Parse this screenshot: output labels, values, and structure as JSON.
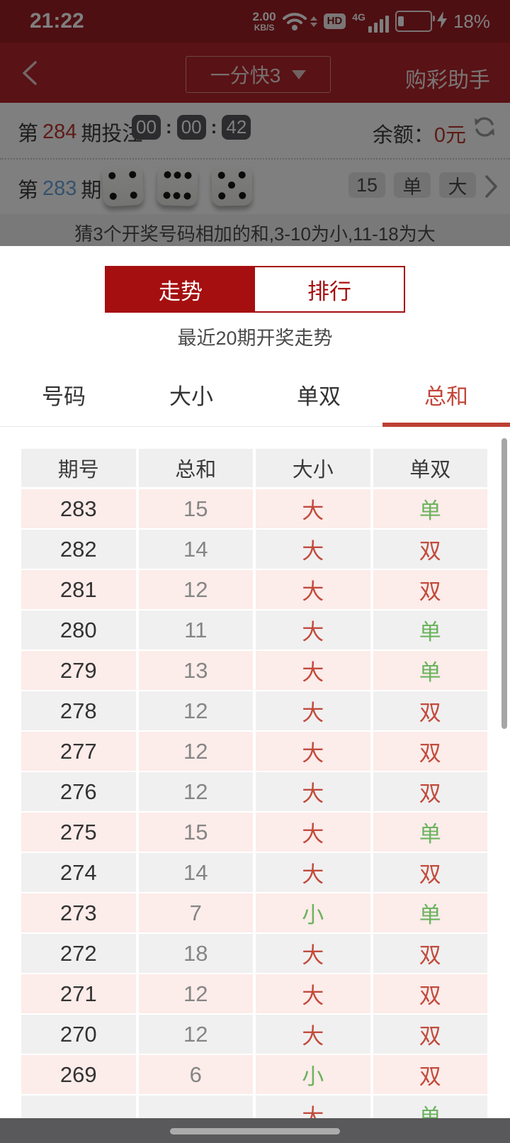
{
  "status_bar": {
    "time": "21:22",
    "network_speed_value": "2.00",
    "network_speed_unit": "KB/S",
    "hd_label": "HD",
    "network_type": "4G",
    "battery_percent": "18%"
  },
  "nav_bar": {
    "game_selector": "一分快3",
    "right_action": "购彩助手"
  },
  "betting_panel": {
    "issue_prefix": "第",
    "issue_number": "284",
    "issue_suffix": "期投注",
    "countdown": {
      "hours": "00",
      "minutes": "00",
      "seconds": "42",
      "separator": ":"
    },
    "balance_label": "余额：",
    "balance_value": "0元",
    "last_issue_prefix": "第",
    "last_issue_number": "283",
    "last_issue_suffix": "期",
    "dice": [
      4,
      6,
      5
    ],
    "result_chips": [
      "15",
      "单",
      "大"
    ],
    "hint": "猜3个开奖号码相加的和,3-10为小,11-18为大"
  },
  "sheet": {
    "segmented": {
      "active": "走势",
      "inactive": "排行"
    },
    "subtitle": "最近20期开奖走势",
    "tabs": [
      {
        "label": "号码",
        "active": false
      },
      {
        "label": "大小",
        "active": false
      },
      {
        "label": "单双",
        "active": false
      },
      {
        "label": "总和",
        "active": true
      }
    ],
    "table": {
      "headers": [
        "期号",
        "总和",
        "大小",
        "单双"
      ],
      "rows": [
        {
          "period": "283",
          "sum": "15",
          "size": "大",
          "parity": "单"
        },
        {
          "period": "282",
          "sum": "14",
          "size": "大",
          "parity": "双"
        },
        {
          "period": "281",
          "sum": "12",
          "size": "大",
          "parity": "双"
        },
        {
          "period": "280",
          "sum": "11",
          "size": "大",
          "parity": "单"
        },
        {
          "period": "279",
          "sum": "13",
          "size": "大",
          "parity": "单"
        },
        {
          "period": "278",
          "sum": "12",
          "size": "大",
          "parity": "双"
        },
        {
          "period": "277",
          "sum": "12",
          "size": "大",
          "parity": "双"
        },
        {
          "period": "276",
          "sum": "12",
          "size": "大",
          "parity": "双"
        },
        {
          "period": "275",
          "sum": "15",
          "size": "大",
          "parity": "单"
        },
        {
          "period": "274",
          "sum": "14",
          "size": "大",
          "parity": "双"
        },
        {
          "period": "273",
          "sum": "7",
          "size": "小",
          "parity": "单"
        },
        {
          "period": "272",
          "sum": "18",
          "size": "大",
          "parity": "双"
        },
        {
          "period": "271",
          "sum": "12",
          "size": "大",
          "parity": "双"
        },
        {
          "period": "270",
          "sum": "12",
          "size": "大",
          "parity": "双"
        },
        {
          "period": "269",
          "sum": "6",
          "size": "小",
          "parity": "双"
        },
        {
          "period": "",
          "sum": "",
          "size": "大",
          "parity": "单"
        }
      ]
    }
  },
  "colors": {
    "accent_red_dark": "#a50f10",
    "tab_active_red": "#c1473a",
    "value_red": "#c24b3c",
    "value_green": "#6cb35e",
    "header_red": "#b2252a"
  }
}
